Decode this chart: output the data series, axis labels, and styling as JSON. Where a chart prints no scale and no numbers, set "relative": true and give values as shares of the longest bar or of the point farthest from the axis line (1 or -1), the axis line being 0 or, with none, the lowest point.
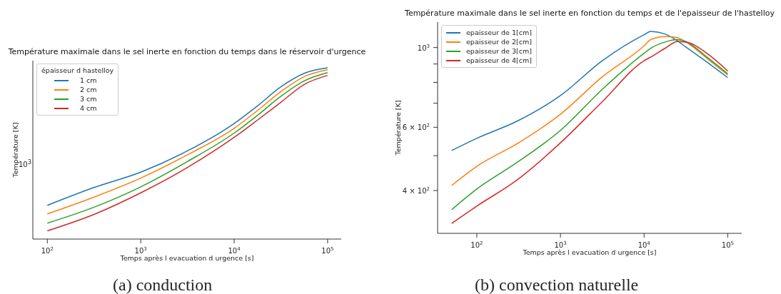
{
  "chart_data": [
    {
      "type": "line",
      "title": "Température maximale dans le sel inerte en fonction du temps dans le réservoir d'urgence",
      "xlabel": "Temps après l evacuation d urgence [s]",
      "ylabel": "Température [K]",
      "legend_title": "épaisseur d hastelloy",
      "legend": "top left",
      "log": "x",
      "x": [
        100,
        316,
        1000,
        3162,
        10000,
        17783,
        31623,
        56234,
        100000
      ],
      "xlim": [
        70,
        140000
      ],
      "xticks": [
        {
          "value": 100,
          "label": "10$^{2}$"
        },
        {
          "value": 1000,
          "label": "10$^{3}$"
        },
        {
          "value": 10000,
          "label": "10$^{4}$"
        },
        {
          "value": 100000,
          "label": "10$^{5}$"
        }
      ],
      "relative": true,
      "series": [
        {
          "name": "1 cm",
          "color": "#1f77b4",
          "values": [
            0.197,
            0.301,
            0.391,
            0.515,
            0.675,
            0.778,
            0.889,
            0.968,
            1
          ]
        },
        {
          "name": "2 cm",
          "color": "#ff7f0e",
          "values": [
            0.147,
            0.245,
            0.356,
            0.492,
            0.647,
            0.751,
            0.861,
            0.949,
            0.989
          ]
        },
        {
          "name": "3 cm",
          "color": "#2ca02c",
          "values": [
            0.093,
            0.186,
            0.305,
            0.453,
            0.619,
            0.723,
            0.834,
            0.924,
            0.972
          ]
        },
        {
          "name": "4 cm",
          "color": "#d62728",
          "values": [
            0.048,
            0.144,
            0.27,
            0.418,
            0.594,
            0.695,
            0.799,
            0.903,
            0.956
          ]
        }
      ],
      "annotations": [
        "(a) conduction",
        "10$^{3}$"
      ]
    },
    {
      "type": "line",
      "title": "Température maximale dans le sel inerte en fonction du temps et de l'epaisseur de l'hastelloy",
      "xlabel": "Temps après l evacuation d urgence [s]",
      "ylabel": "Température [K]",
      "legend": "top left",
      "log": "xy",
      "x": [
        50,
        100,
        316,
        1000,
        3162,
        10000,
        12000,
        17783,
        25000,
        31623,
        56234,
        100000
      ],
      "xlim": [
        34,
        147000
      ],
      "xticks": [
        {
          "value": 100,
          "label": "10$^{2}$"
        },
        {
          "value": 1000,
          "label": "10$^{3}$"
        },
        {
          "value": 10000,
          "label": "10$^{4}$"
        },
        {
          "value": 100000,
          "label": "10$^{5}$"
        }
      ],
      "ylim": [
        304,
        1177
      ],
      "yticks": [
        {
          "value": 400,
          "label": "4 × 10$^{2}$"
        },
        {
          "value": 500,
          "label": null
        },
        {
          "value": 600,
          "label": "6 × 10$^{2}$"
        },
        {
          "value": 700,
          "label": null
        },
        {
          "value": 800,
          "label": null
        },
        {
          "value": 900,
          "label": null
        },
        {
          "value": 1000,
          "label": "10$^{3}$"
        }
      ],
      "series": [
        {
          "name": "epaisseur de 1[cm]",
          "color": "#1f77b4",
          "values": [
            517,
            559,
            627,
            735,
            919,
            1086,
            1109,
            1091,
            1044,
            1003,
            912,
            825
          ]
        },
        {
          "name": "epaisseur de 2[cm]",
          "color": "#ff7f0e",
          "values": [
            413,
            467,
            543,
            652,
            829,
            1011,
            1052,
            1073,
            1066,
            1036,
            934,
            839
          ]
        },
        {
          "name": "epaisseur de 3[cm]",
          "color": "#2ca02c",
          "values": [
            354,
            404,
            482,
            588,
            765,
            964,
            995,
            1036,
            1052,
            1039,
            941,
            845
          ]
        },
        {
          "name": "epaisseur de 4[cm]",
          "color": "#d62728",
          "values": [
            324,
            362,
            431,
            543,
            707,
            919,
            941,
            995,
            1039,
            1036,
            964,
            860
          ]
        }
      ],
      "annotations": [
        "(b) convection naturelle"
      ]
    }
  ]
}
